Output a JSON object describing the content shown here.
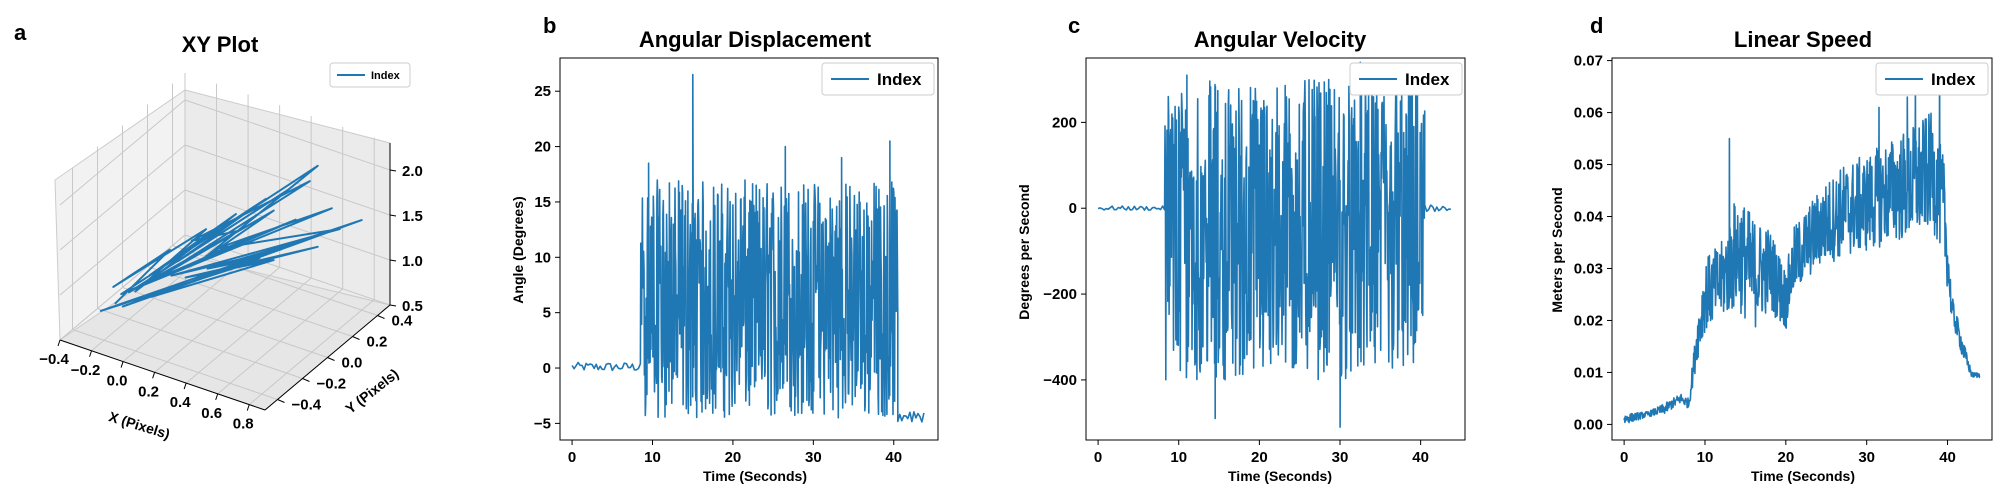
{
  "chart_data": [
    {
      "type": "line",
      "projection": "3d",
      "panel_label": "a",
      "title": "XY Plot",
      "xlabel": "X (Pixels)",
      "ylabel": "Y (Pixels)",
      "zlabel": "",
      "xticks": [
        "−0.4",
        "−0.2",
        "0.0",
        "0.2",
        "0.4",
        "0.6",
        "0.8"
      ],
      "yticks": [
        "−0.4",
        "−0.2",
        "0.0",
        "0.2",
        "0.4"
      ],
      "zticks": [
        "0.5",
        "1.0",
        "1.5",
        "2.0"
      ],
      "xlim": [
        -0.4,
        0.9
      ],
      "ylim": [
        -0.5,
        0.5
      ],
      "zlim": [
        0.5,
        2.3
      ],
      "grid": true,
      "legend": "top-right",
      "color": "#1f77b4",
      "series": [
        {
          "name": "Index",
          "points": [
            [
              -0.25,
              -0.25,
              0.7
            ],
            [
              -0.1,
              0.0,
              1.1
            ],
            [
              -0.3,
              -0.2,
              0.8
            ],
            [
              0.05,
              0.1,
              1.3
            ],
            [
              -0.2,
              -0.15,
              0.75
            ],
            [
              0.2,
              0.15,
              1.5
            ],
            [
              -0.15,
              -0.1,
              0.9
            ],
            [
              0.35,
              0.2,
              1.7
            ],
            [
              -0.05,
              0.0,
              1.0
            ],
            [
              0.45,
              0.25,
              1.8
            ],
            [
              -0.2,
              -0.2,
              0.8
            ],
            [
              0.25,
              0.1,
              1.4
            ],
            [
              0.0,
              0.05,
              1.2
            ],
            [
              0.55,
              0.3,
              1.9
            ],
            [
              -0.1,
              -0.1,
              0.9
            ],
            [
              0.4,
              0.2,
              1.6
            ],
            [
              0.1,
              0.0,
              1.1
            ],
            [
              0.6,
              0.3,
              2.1
            ],
            [
              -0.25,
              -0.2,
              0.75
            ],
            [
              0.3,
              0.15,
              1.3
            ],
            [
              0.05,
              0.1,
              1.0
            ],
            [
              0.5,
              0.25,
              1.5
            ],
            [
              -0.15,
              -0.15,
              0.85
            ],
            [
              0.65,
              0.35,
              1.6
            ],
            [
              0.15,
              0.05,
              1.2
            ],
            [
              0.7,
              0.35,
              1.4
            ],
            [
              -0.05,
              -0.05,
              0.9
            ],
            [
              0.45,
              0.2,
              1.2
            ],
            [
              0.2,
              0.1,
              1.0
            ],
            [
              0.8,
              0.4,
              1.5
            ],
            [
              -0.2,
              -0.25,
              0.7
            ],
            [
              0.35,
              0.15,
              1.1
            ],
            [
              0.1,
              0.05,
              0.95
            ],
            [
              0.55,
              0.25,
              1.3
            ],
            [
              -0.3,
              -0.3,
              0.65
            ],
            [
              0.25,
              0.1,
              1.0
            ],
            [
              0.6,
              0.3,
              1.2
            ],
            [
              0.0,
              0.0,
              0.85
            ],
            [
              0.4,
              0.2,
              1.05
            ],
            [
              -0.1,
              -0.15,
              0.75
            ]
          ]
        }
      ]
    },
    {
      "type": "line",
      "panel_label": "b",
      "title": "Angular Displacement",
      "xlabel": "Time (Seconds)",
      "ylabel": "Angle (Degrees)",
      "xlim": [
        -1.5,
        45.5
      ],
      "ylim": [
        -6.5,
        28
      ],
      "xticks": [
        0,
        10,
        20,
        30,
        40
      ],
      "yticks": [
        -5,
        0,
        5,
        10,
        15,
        20,
        25
      ],
      "grid": false,
      "legend": "top-right",
      "color": "#1f77b4",
      "series": [
        {
          "name": "Index",
          "segments": [
            {
              "t_start": 0,
              "t_end": 8.5,
              "low": -0.3,
              "high": 0.5
            },
            {
              "t_start": 8.5,
              "t_end": 40.5,
              "low": -4.5,
              "high": 17,
              "peaks": [
                [
                  15.0,
                  26.5
                ],
                [
                  9.5,
                  18.5
                ],
                [
                  26.5,
                  20.0
                ],
                [
                  39.5,
                  20.5
                ],
                [
                  33.5,
                  19.0
                ]
              ]
            },
            {
              "t_start": 40.5,
              "t_end": 44,
              "low": -5,
              "high": -3.5
            }
          ]
        }
      ]
    },
    {
      "type": "line",
      "panel_label": "c",
      "title": "Angular Velocity",
      "xlabel": "Time (Seconds)",
      "ylabel": "Degrees per Second",
      "xlim": [
        -1.5,
        45.5
      ],
      "ylim": [
        -540,
        350
      ],
      "xticks": [
        0,
        10,
        20,
        30,
        40
      ],
      "yticks": [
        -400,
        -200,
        0,
        200
      ],
      "grid": false,
      "legend": "top-right",
      "color": "#1f77b4",
      "series": [
        {
          "name": "Index",
          "segments": [
            {
              "t_start": 0,
              "t_end": 8.3,
              "low": -5,
              "high": 5
            },
            {
              "t_start": 8.3,
              "t_end": 40.5,
              "low": -400,
              "high": 300,
              "peaks": [
                [
                  14.5,
                  -490
                ],
                [
                  30.0,
                  -510
                ],
                [
                  32.5,
                  340
                ],
                [
                  11.0,
                  310
                ]
              ]
            },
            {
              "t_start": 40.5,
              "t_end": 44,
              "low": -8,
              "high": 8
            }
          ]
        }
      ]
    },
    {
      "type": "line",
      "panel_label": "d",
      "title": "Linear Speed",
      "xlabel": "Time (Seconds)",
      "ylabel": "Meters per Second",
      "xlim": [
        -1.5,
        45.5
      ],
      "ylim": [
        -0.003,
        0.0705
      ],
      "xticks": [
        0,
        10,
        20,
        30,
        40
      ],
      "yticks": [
        0.0,
        0.01,
        0.02,
        0.03,
        0.04,
        0.05,
        0.06,
        0.07
      ],
      "ytick_labels": [
        "0.00",
        "0.01",
        "0.02",
        "0.03",
        "0.04",
        "0.05",
        "0.06",
        "0.07"
      ],
      "grid": false,
      "legend": "top-right",
      "color": "#1f77b4",
      "series": [
        {
          "name": "Index",
          "envelope": [
            [
              0,
              0.0,
              0.002
            ],
            [
              3,
              0.0015,
              0.0025
            ],
            [
              5,
              0.002,
              0.004
            ],
            [
              7,
              0.004,
              0.006
            ],
            [
              8,
              0.003,
              0.005
            ],
            [
              9,
              0.012,
              0.02
            ],
            [
              10,
              0.018,
              0.032
            ],
            [
              12,
              0.02,
              0.035
            ],
            [
              14,
              0.022,
              0.045
            ],
            [
              16,
              0.018,
              0.04
            ],
            [
              18,
              0.022,
              0.038
            ],
            [
              20,
              0.018,
              0.03
            ],
            [
              21,
              0.025,
              0.038
            ],
            [
              24,
              0.03,
              0.045
            ],
            [
              27,
              0.032,
              0.05
            ],
            [
              30,
              0.033,
              0.052
            ],
            [
              33,
              0.035,
              0.055
            ],
            [
              36,
              0.035,
              0.058
            ],
            [
              38,
              0.038,
              0.06
            ],
            [
              39.5,
              0.032,
              0.052
            ],
            [
              40.5,
              0.02,
              0.025
            ],
            [
              42,
              0.012,
              0.016
            ],
            [
              43,
              0.009,
              0.01
            ],
            [
              44,
              0.009,
              0.01
            ]
          ],
          "peaks": [
            [
              39.0,
              0.068
            ],
            [
              36.0,
              0.065
            ],
            [
              31.5,
              0.061
            ],
            [
              13.0,
              0.055
            ],
            [
              35.0,
              0.063
            ]
          ]
        }
      ]
    }
  ]
}
